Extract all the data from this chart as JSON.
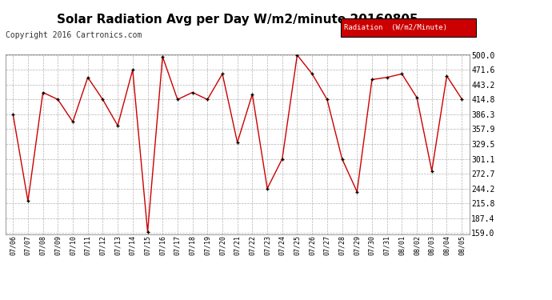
{
  "title": "Solar Radiation Avg per Day W/m2/minute 20160805",
  "copyright": "Copyright 2016 Cartronics.com",
  "legend_label": "Radiation  (W/m2/Minute)",
  "dates": [
    "07/06",
    "07/07",
    "07/08",
    "07/09",
    "07/10",
    "07/11",
    "07/12",
    "07/13",
    "07/14",
    "07/15",
    "07/16",
    "07/17",
    "07/18",
    "07/19",
    "07/20",
    "07/21",
    "07/22",
    "07/23",
    "07/24",
    "07/25",
    "07/26",
    "07/27",
    "07/28",
    "07/29",
    "07/30",
    "07/31",
    "08/01",
    "08/02",
    "08/03",
    "08/04",
    "08/05"
  ],
  "values": [
    386.3,
    220.0,
    428.4,
    414.8,
    372.0,
    457.2,
    414.8,
    364.8,
    471.6,
    161.0,
    497.0,
    414.8,
    428.4,
    414.8,
    463.9,
    332.5,
    425.0,
    244.2,
    301.1,
    500.0,
    463.9,
    414.8,
    301.1,
    238.0,
    453.0,
    457.2,
    463.9,
    418.5,
    278.0,
    460.0,
    416.0
  ],
  "line_color": "#cc0000",
  "marker_color": "#000000",
  "bg_color": "#ffffff",
  "plot_bg_color": "#ffffff",
  "grid_color": "#aaaaaa",
  "title_fontsize": 11,
  "copyright_fontsize": 7,
  "legend_bg": "#cc0000",
  "legend_text_color": "#ffffff",
  "ymin": 159.0,
  "ymax": 500.0,
  "yticks": [
    159.0,
    187.4,
    215.8,
    244.2,
    272.7,
    301.1,
    329.5,
    357.9,
    386.3,
    414.8,
    443.2,
    471.6,
    500.0
  ]
}
